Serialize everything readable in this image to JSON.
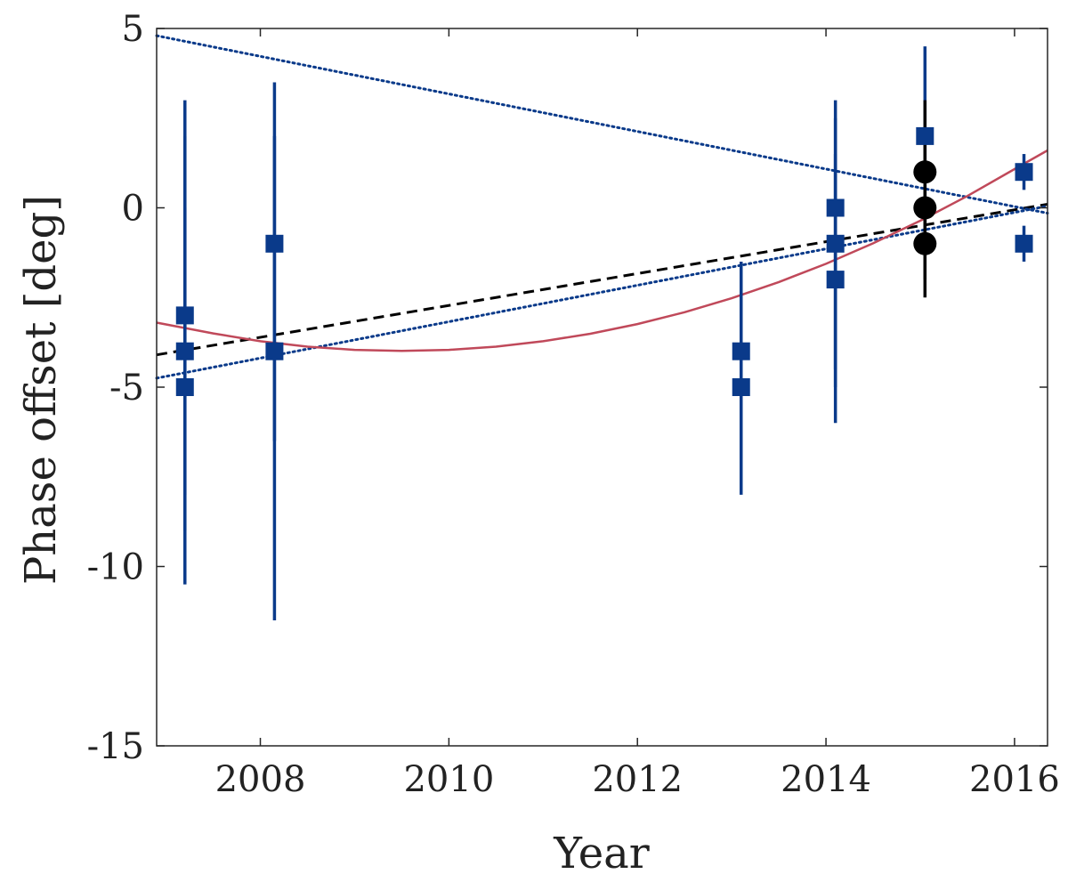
{
  "chart_data": {
    "type": "scatter",
    "xlabel": "Year",
    "ylabel": "Phase offset [deg]",
    "xlim": [
      2006.9,
      2016.35
    ],
    "ylim": [
      -15,
      5
    ],
    "xticks": [
      2008,
      2010,
      2012,
      2014,
      2016
    ],
    "xtick_labels": [
      "2008",
      "2010",
      "2012",
      "2014",
      "2016"
    ],
    "yticks": [
      -15,
      -10,
      -5,
      0,
      5
    ],
    "ytick_labels": [
      "-15",
      "-10",
      "-5",
      "0",
      "5"
    ],
    "colors": {
      "blue": "#0a3a8a",
      "black": "#000000",
      "red": "#c0495a",
      "frame": "#262626"
    },
    "series": [
      {
        "name": "squares",
        "marker": "square",
        "color": "#0a3a8a",
        "points": [
          {
            "x": 2007.2,
            "y": -3,
            "ylo": -10.5,
            "yhi": 3
          },
          {
            "x": 2007.2,
            "y": -4,
            "ylo": -9,
            "yhi": 2
          },
          {
            "x": 2007.2,
            "y": -5,
            "ylo": -8,
            "yhi": 0
          },
          {
            "x": 2008.15,
            "y": -1,
            "ylo": -6.5,
            "yhi": 2
          },
          {
            "x": 2008.15,
            "y": -4,
            "ylo": -11.5,
            "yhi": 3.5
          },
          {
            "x": 2013.1,
            "y": -4,
            "ylo": -8,
            "yhi": -1.5
          },
          {
            "x": 2013.1,
            "y": -5,
            "ylo": -7,
            "yhi": -2
          },
          {
            "x": 2014.1,
            "y": 0,
            "ylo": -5,
            "yhi": 2.5
          },
          {
            "x": 2014.1,
            "y": -1,
            "ylo": -6,
            "yhi": 3
          },
          {
            "x": 2014.1,
            "y": -2,
            "ylo": -4.5,
            "yhi": 1.5
          },
          {
            "x": 2015.05,
            "y": 2,
            "ylo": -0.5,
            "yhi": 4.5
          },
          {
            "x": 2016.1,
            "y": 1,
            "ylo": 0.5,
            "yhi": 1.5
          },
          {
            "x": 2016.1,
            "y": -1,
            "ylo": -1.5,
            "yhi": -0.5
          }
        ]
      },
      {
        "name": "circles",
        "marker": "circle",
        "color": "#000000",
        "points": [
          {
            "x": 2015.05,
            "y": 1,
            "ylo": -0.5,
            "yhi": 3
          },
          {
            "x": 2015.05,
            "y": 0,
            "ylo": -2.5,
            "yhi": 2
          },
          {
            "x": 2015.05,
            "y": -1,
            "ylo": -2,
            "yhi": 0
          }
        ]
      }
    ],
    "lines": [
      {
        "name": "dashed-black-fit",
        "style": "dashed",
        "color": "#000000",
        "points": [
          [
            2006.9,
            -4.1
          ],
          [
            2016.35,
            0.1
          ]
        ]
      },
      {
        "name": "dotted-blue-fit-rising",
        "style": "dotted",
        "color": "#0a3a8a",
        "points": [
          [
            2006.9,
            -4.75
          ],
          [
            2016.35,
            0.05
          ]
        ]
      },
      {
        "name": "dotted-blue-fit-falling",
        "style": "dotted",
        "color": "#0a3a8a",
        "points": [
          [
            2006.9,
            4.8
          ],
          [
            2016.35,
            -0.15
          ]
        ]
      },
      {
        "name": "red-curve-fit",
        "style": "solid",
        "color": "#c0495a",
        "points": [
          [
            2006.9,
            -3.2
          ],
          [
            2007.5,
            -3.5
          ],
          [
            2008,
            -3.72
          ],
          [
            2008.5,
            -3.87
          ],
          [
            2009,
            -3.96
          ],
          [
            2009.5,
            -3.99
          ],
          [
            2010,
            -3.96
          ],
          [
            2010.5,
            -3.87
          ],
          [
            2011,
            -3.72
          ],
          [
            2011.5,
            -3.51
          ],
          [
            2012,
            -3.24
          ],
          [
            2012.5,
            -2.91
          ],
          [
            2013,
            -2.52
          ],
          [
            2013.5,
            -2.07
          ],
          [
            2014,
            -1.56
          ],
          [
            2014.5,
            -0.99
          ],
          [
            2015,
            -0.36
          ],
          [
            2015.5,
            0.33
          ],
          [
            2016,
            1.08
          ],
          [
            2016.35,
            1.6
          ]
        ]
      }
    ]
  }
}
